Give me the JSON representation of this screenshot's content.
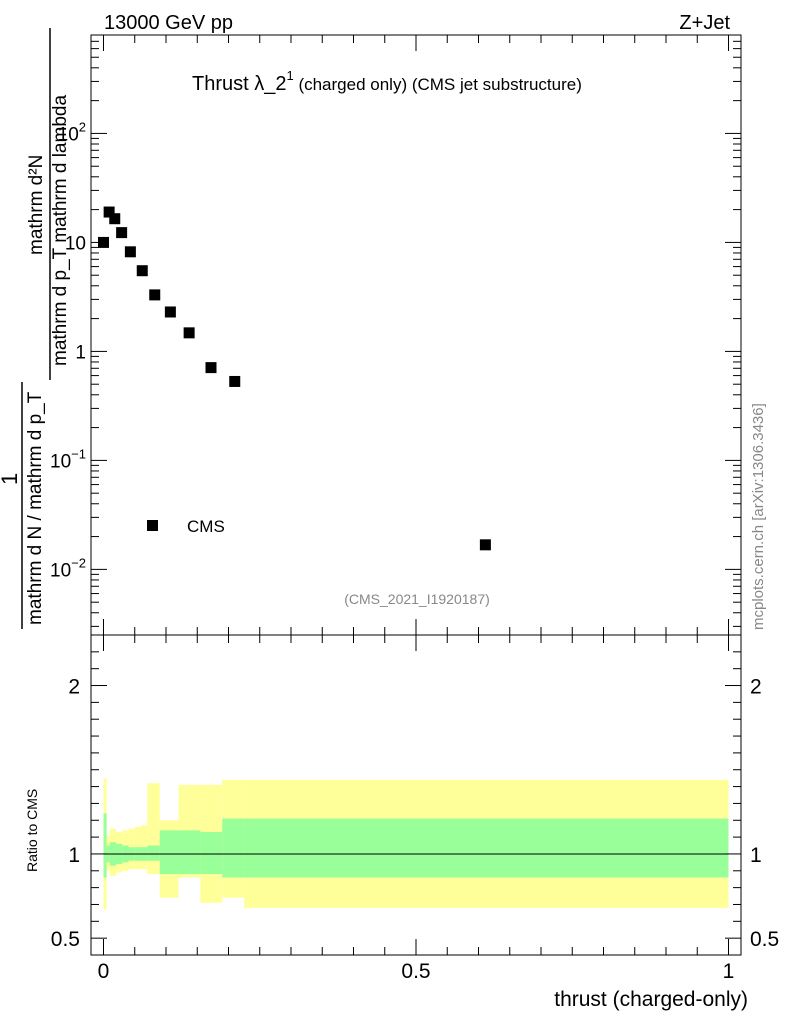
{
  "header": {
    "left": "13000 GeV pp",
    "right": "Z+Jet"
  },
  "plot_title": {
    "main": "Thrust λ_2",
    "sup": "1",
    "rest": " (charged only) (CMS jet substructure)"
  },
  "watermark": "mcplots.cern.ch [arXiv:1306.3436]",
  "analysis_id": "(CMS_2021_I1920187)",
  "ylabel_top": {
    "numerator": "mathrm d²N",
    "denominator": "mathrm d p_T mathrm d lambda",
    "prefix": "1",
    "prefix_den": "mathrm d N / mathrm d p_T"
  },
  "ratio_ylabel": "Ratio to CMS",
  "xlabel": "thrust (charged-only)",
  "legend": {
    "label": "CMS"
  },
  "chart_data": [
    {
      "type": "scatter",
      "name": "main",
      "yscale": "log",
      "xlim": [
        -0.02,
        1.02
      ],
      "ylim": [
        0.0025,
        800
      ],
      "ytick_labels": [
        {
          "base": "10",
          "exp": "2",
          "value": 100
        },
        {
          "base": "10",
          "exp": "",
          "value": 10
        },
        {
          "base": "1",
          "exp": "",
          "value": 1
        },
        {
          "base": "10",
          "exp": "−1",
          "value": 0.1
        },
        {
          "base": "10",
          "exp": "−2",
          "value": 0.01
        }
      ],
      "series": [
        {
          "name": "CMS",
          "x": [
            0.0,
            0.009,
            0.018,
            0.029,
            0.043,
            0.062,
            0.082,
            0.107,
            0.137,
            0.172,
            0.21,
            0.611
          ],
          "y": [
            10.0,
            19.0,
            16.5,
            12.3,
            8.2,
            5.5,
            3.3,
            2.3,
            1.48,
            0.71,
            0.53,
            0.0168
          ]
        }
      ]
    },
    {
      "type": "area",
      "name": "ratio",
      "xlim": [
        -0.02,
        1.02
      ],
      "ylim": [
        0.4,
        2.3
      ],
      "yticks": [
        0.5,
        1,
        2
      ],
      "ytick_labels": [
        "0.5",
        "1",
        "2"
      ],
      "xticks": [
        0,
        0.5,
        1
      ],
      "xtick_labels": [
        "0",
        "0.5",
        "1"
      ],
      "reference": 1.0,
      "bins": [
        0,
        0.005,
        0.01,
        0.02,
        0.03,
        0.04,
        0.05,
        0.06,
        0.07,
        0.09,
        0.12,
        0.155,
        0.19,
        0.225,
        1.0
      ],
      "band_green": {
        "lo": [
          0.86,
          0.95,
          0.93,
          0.94,
          0.95,
          0.96,
          0.96,
          0.96,
          0.96,
          0.88,
          0.88,
          0.88,
          0.86,
          0.86
        ],
        "hi": [
          1.24,
          1.05,
          1.07,
          1.06,
          1.05,
          1.04,
          1.04,
          1.04,
          1.05,
          1.14,
          1.14,
          1.13,
          1.21,
          1.21
        ]
      },
      "band_yellow": {
        "lo": [
          0.67,
          0.9,
          0.87,
          0.89,
          0.9,
          0.91,
          0.91,
          0.91,
          0.88,
          0.74,
          0.86,
          0.71,
          0.74,
          0.68
        ],
        "hi": [
          1.45,
          1.11,
          1.15,
          1.13,
          1.14,
          1.15,
          1.16,
          1.17,
          1.42,
          1.2,
          1.41,
          1.41,
          1.44,
          1.44
        ]
      }
    }
  ],
  "colors": {
    "green": "#99ff99",
    "yellow": "#ffff99",
    "marker": "#000000"
  }
}
